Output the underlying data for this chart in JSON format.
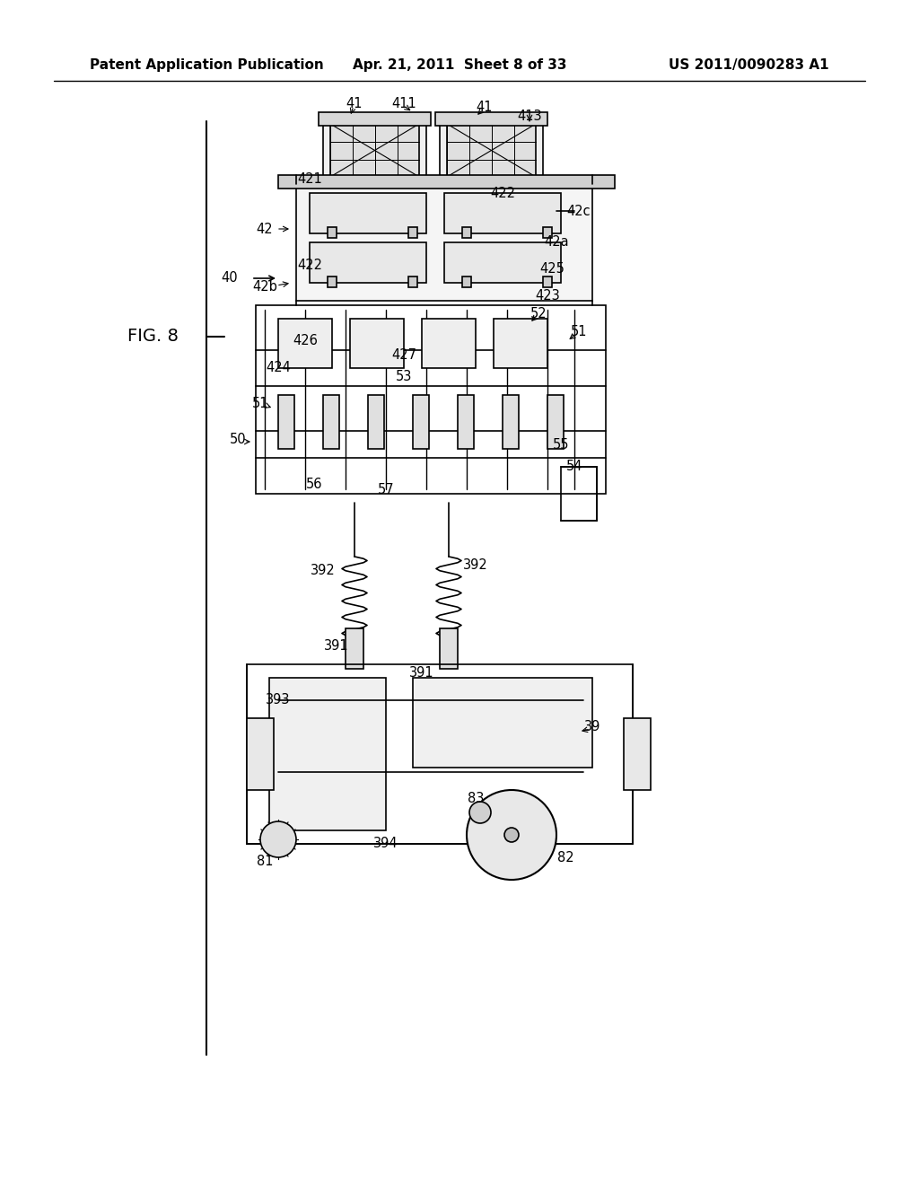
{
  "background_color": "#ffffff",
  "header_left": "Patent Application Publication",
  "header_center": "Apr. 21, 2011  Sheet 8 of 33",
  "header_right": "US 2011/0090283 A1",
  "figure_label": "FIG. 8",
  "header_fontsize": 11,
  "figure_label_fontsize": 14,
  "line_color": "#000000",
  "line_width": 1.2,
  "label_fontsize": 10.5
}
